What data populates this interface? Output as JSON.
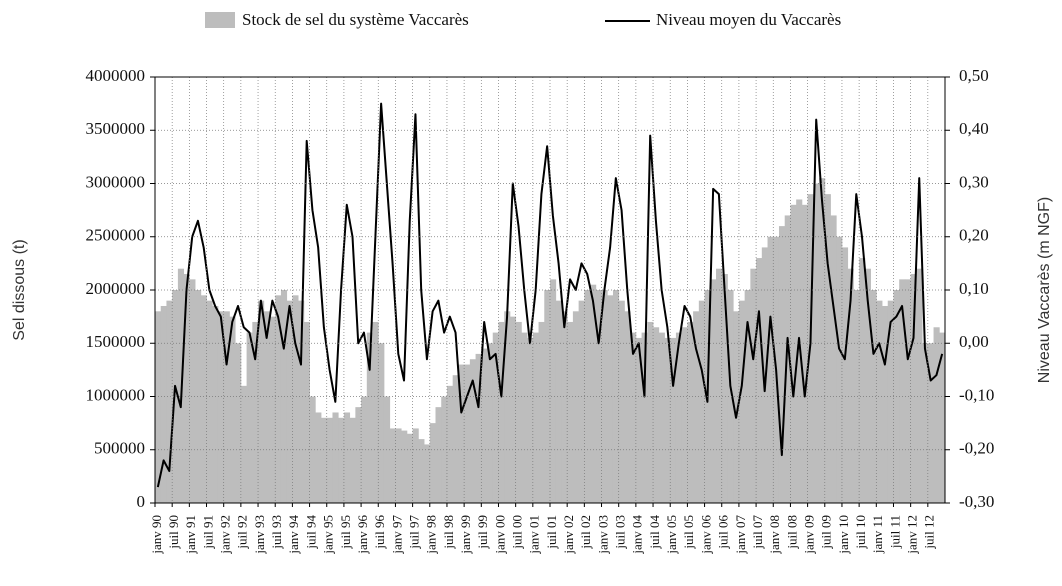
{
  "chart_data": {
    "type": "combo",
    "y_label": "Sel dissous (t)",
    "y2_label": "Niveau Vaccarès (m NGF)",
    "ylim": [
      0,
      4000000
    ],
    "yticks": [
      0,
      500000,
      1000000,
      1500000,
      2000000,
      2500000,
      3000000,
      3500000,
      4000000
    ],
    "y2lim": [
      -0.3,
      0.5
    ],
    "y2ticks": [
      {
        "value": -0.3,
        "label": "-0,30"
      },
      {
        "value": -0.2,
        "label": "-0,20"
      },
      {
        "value": -0.1,
        "label": "-0,10"
      },
      {
        "value": 0,
        "label": "0,00"
      },
      {
        "value": 0.1,
        "label": "0,10"
      },
      {
        "value": 0.2,
        "label": "0,20"
      },
      {
        "value": 0.3,
        "label": "0,30"
      },
      {
        "value": 0.4,
        "label": "0,40"
      },
      {
        "value": 0.5,
        "label": "0,50"
      }
    ],
    "grid": true,
    "categories": [
      "janv 90",
      null,
      null,
      "juil 90",
      null,
      null,
      "janv 91",
      null,
      null,
      "juil 91",
      null,
      null,
      "janv 92",
      null,
      null,
      "juil 92",
      null,
      null,
      "janv 93",
      null,
      null,
      "juil 93",
      null,
      null,
      "janv 94",
      null,
      null,
      "juil 94",
      null,
      null,
      "janv 95",
      null,
      null,
      "juil 95",
      null,
      null,
      "janv 96",
      null,
      null,
      "juil 96",
      null,
      null,
      "janv 97",
      null,
      null,
      "juil 97",
      null,
      null,
      "janv 98",
      null,
      null,
      "juil 98",
      null,
      null,
      "janv 99",
      null,
      null,
      "juil 99",
      null,
      null,
      "janv 00",
      null,
      null,
      "juil 00",
      null,
      null,
      "janv 01",
      null,
      null,
      "juil 01",
      null,
      null,
      "janv 02",
      null,
      null,
      "juil 02",
      null,
      null,
      "janv 03",
      null,
      null,
      "juil 03",
      null,
      null,
      "janv 04",
      null,
      null,
      "juil 04",
      null,
      null,
      "janv 05",
      null,
      null,
      "juil 05",
      null,
      null,
      "janv 06",
      null,
      null,
      "juil 06",
      null,
      null,
      "janv 07",
      null,
      null,
      "juil 07",
      null,
      null,
      "janv 08",
      null,
      null,
      "juil 08",
      null,
      null,
      "janv 09",
      null,
      null,
      "juil 09",
      null,
      null,
      "janv 10",
      null,
      null,
      "juil 10",
      null,
      null,
      "janv 11",
      null,
      null,
      "juil 11",
      null,
      null,
      "janv 12",
      null,
      null,
      "juil 12",
      null,
      null
    ],
    "series": [
      {
        "name": "Stock de sel du système Vaccarès",
        "type": "bar",
        "color": "#bdbdbd",
        "values": [
          1800000,
          1850000,
          1900000,
          2000000,
          2200000,
          2150000,
          2100000,
          2000000,
          1950000,
          1900000,
          1850000,
          1800000,
          1800000,
          1750000,
          1500000,
          1100000,
          1600000,
          1700000,
          1900000,
          1800000,
          1750000,
          1950000,
          2000000,
          1900000,
          1950000,
          1900000,
          1700000,
          1000000,
          850000,
          800000,
          800000,
          850000,
          800000,
          850000,
          800000,
          900000,
          1000000,
          1600000,
          1700000,
          1500000,
          1000000,
          700000,
          700000,
          680000,
          650000,
          700000,
          600000,
          550000,
          750000,
          900000,
          1000000,
          1100000,
          1200000,
          1300000,
          1300000,
          1350000,
          1400000,
          1450000,
          1500000,
          1600000,
          1700000,
          1800000,
          1750000,
          1700000,
          1600000,
          1550000,
          1600000,
          1700000,
          2000000,
          2100000,
          1900000,
          1800000,
          1700000,
          1800000,
          1900000,
          2000000,
          2050000,
          2000000,
          2000000,
          1950000,
          2000000,
          1900000,
          1800000,
          1600000,
          1550000,
          1600000,
          1700000,
          1650000,
          1600000,
          1550000,
          1550000,
          1600000,
          1650000,
          1700000,
          1800000,
          1900000,
          2000000,
          2100000,
          2200000,
          2150000,
          2000000,
          1800000,
          1900000,
          2000000,
          2200000,
          2300000,
          2400000,
          2500000,
          2500000,
          2600000,
          2700000,
          2800000,
          2850000,
          2800000,
          2900000,
          3000000,
          3050000,
          2900000,
          2700000,
          2500000,
          2400000,
          2200000,
          2000000,
          2300000,
          2200000,
          2000000,
          1900000,
          1850000,
          1900000,
          2000000,
          2100000,
          2100000,
          2150000,
          2200000,
          1500000,
          1500000,
          1650000,
          1600000
        ]
      },
      {
        "name": "Niveau moyen du Vaccarès",
        "type": "line",
        "axis": "y2",
        "color": "#000000",
        "values": [
          -0.27,
          -0.22,
          -0.24,
          -0.08,
          -0.12,
          0.1,
          0.2,
          0.23,
          0.18,
          0.1,
          0.07,
          0.05,
          -0.04,
          0.04,
          0.07,
          0.03,
          0.02,
          -0.03,
          0.08,
          0.01,
          0.08,
          0.05,
          -0.01,
          0.07,
          0.0,
          -0.04,
          0.38,
          0.25,
          0.18,
          0.03,
          -0.05,
          -0.11,
          0.1,
          0.26,
          0.2,
          0.0,
          0.02,
          -0.05,
          0.2,
          0.45,
          0.3,
          0.15,
          -0.02,
          -0.07,
          0.23,
          0.43,
          0.1,
          -0.03,
          0.06,
          0.08,
          0.02,
          0.05,
          0.02,
          -0.13,
          -0.1,
          -0.07,
          -0.12,
          0.04,
          -0.03,
          -0.02,
          -0.1,
          0.05,
          0.3,
          0.22,
          0.1,
          0.0,
          0.1,
          0.28,
          0.37,
          0.24,
          0.15,
          0.03,
          0.12,
          0.1,
          0.15,
          0.13,
          0.08,
          0.0,
          0.1,
          0.18,
          0.31,
          0.25,
          0.1,
          -0.02,
          0.0,
          -0.1,
          0.39,
          0.23,
          0.1,
          0.03,
          -0.08,
          0.0,
          0.07,
          0.05,
          -0.01,
          -0.05,
          -0.11,
          0.29,
          0.28,
          0.1,
          -0.08,
          -0.14,
          -0.08,
          0.04,
          -0.03,
          0.06,
          -0.09,
          0.05,
          -0.05,
          -0.21,
          0.01,
          -0.1,
          0.01,
          -0.1,
          0.0,
          0.42,
          0.27,
          0.15,
          0.07,
          -0.01,
          -0.03,
          0.08,
          0.28,
          0.2,
          0.08,
          -0.02,
          0.0,
          -0.04,
          0.04,
          0.05,
          0.07,
          -0.03,
          0.01,
          0.31,
          -0.01,
          -0.07,
          -0.06,
          -0.02
        ]
      }
    ]
  }
}
